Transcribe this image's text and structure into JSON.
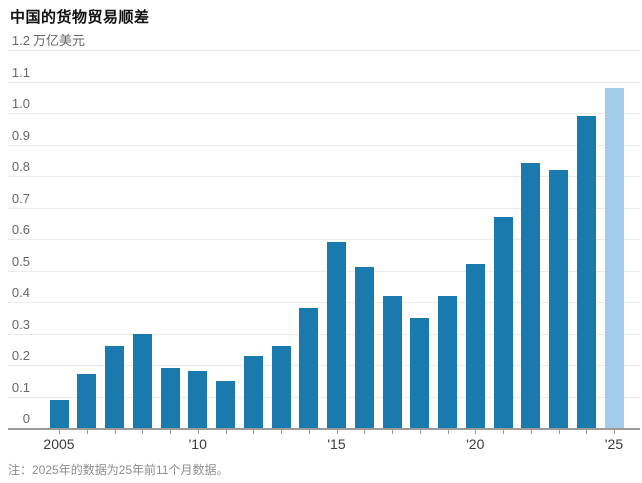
{
  "title": "中国的货物贸易顺差",
  "unit_label": "万亿美元",
  "note": "注：2025年的数据为25年前11个月数据。",
  "colors": {
    "bar": "#1a7aad",
    "bar_highlight": "#a3cceb",
    "gridline": "#ebebeb",
    "axis_line": "#9b9b9b",
    "y_label": "#666666",
    "x_label": "#3a3a3a",
    "note": "#8c8c8c"
  },
  "chart_data": {
    "type": "bar",
    "title": "中国的货物贸易顺差",
    "unit": "万亿美元",
    "categories": [
      "2005",
      "2006",
      "2007",
      "2008",
      "2009",
      "2010",
      "2011",
      "2012",
      "2013",
      "2014",
      "2015",
      "2016",
      "2017",
      "2018",
      "2019",
      "2020",
      "2021",
      "2022",
      "2023",
      "2024",
      "2025"
    ],
    "values": [
      0.09,
      0.17,
      0.26,
      0.3,
      0.19,
      0.18,
      0.15,
      0.23,
      0.26,
      0.38,
      0.59,
      0.51,
      0.42,
      0.35,
      0.42,
      0.52,
      0.67,
      0.84,
      0.82,
      0.99,
      1.08
    ],
    "bar_color": "#1a7aad",
    "highlight": {
      "category": "2025",
      "color": "#a3cceb",
      "meaning": "partial-year data (first 11 months)"
    },
    "ylim": [
      0,
      1.2
    ],
    "y_ticks": [
      "0",
      "0.1",
      "0.2",
      "0.3",
      "0.4",
      "0.5",
      "0.6",
      "0.7",
      "0.8",
      "0.9",
      "1.0",
      "1.1",
      "1.2"
    ],
    "x_tick_labels": [
      {
        "category": "2005",
        "label": "2005"
      },
      {
        "category": "2010",
        "label": "'10"
      },
      {
        "category": "2015",
        "label": "'15"
      },
      {
        "category": "2020",
        "label": "'20"
      },
      {
        "category": "2025",
        "label": "'25"
      }
    ],
    "grid": "horizontal",
    "legend": "none",
    "note": "注：2025年的数据为25年前11个月数据。"
  }
}
